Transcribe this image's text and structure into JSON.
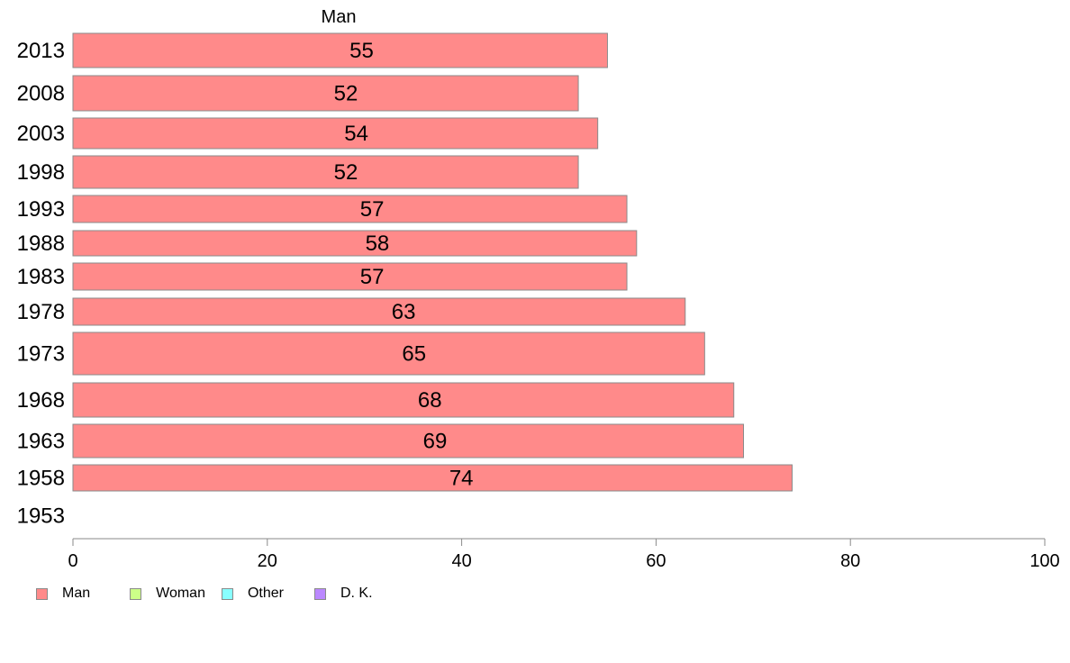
{
  "chart_data": {
    "type": "bar",
    "orientation": "horizontal",
    "title": "Man",
    "categories": [
      "2013",
      "2008",
      "2003",
      "1998",
      "1993",
      "1988",
      "1983",
      "1978",
      "1973",
      "1968",
      "1963",
      "1958",
      "1953"
    ],
    "series": [
      {
        "name": "Man",
        "color": "#ff8a8a",
        "values": [
          55,
          52,
          54,
          52,
          57,
          58,
          57,
          63,
          65,
          68,
          69,
          74,
          null
        ]
      }
    ],
    "data_labels": [
      "55",
      "52",
      "54",
      "52",
      "57",
      "58",
      "57",
      "63",
      "65",
      "68",
      "69",
      "74",
      ""
    ],
    "xlim": [
      0,
      100
    ],
    "xticks": [
      "0",
      "20",
      "40",
      "60",
      "80",
      "100"
    ],
    "xlabel": "",
    "ylabel": "",
    "grid": false,
    "legend": {
      "placement": "bottom-left",
      "items": [
        {
          "label": "Man",
          "color": "#ff8a8a"
        },
        {
          "label": "Woman",
          "color": "#ccff88"
        },
        {
          "label": "Other",
          "color": "#88ffff"
        },
        {
          "label": "D. K.",
          "color": "#bb88ff"
        }
      ]
    }
  }
}
